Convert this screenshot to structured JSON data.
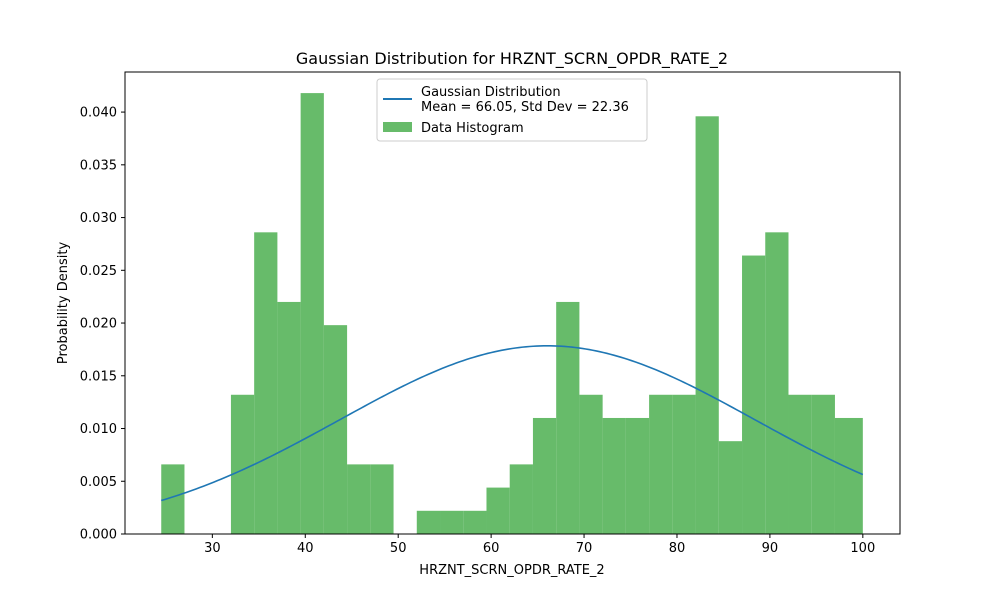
{
  "chart_data": {
    "type": "bar",
    "title": "Gaussian Distribution for HRZNT_SCRN_OPDR_RATE_2",
    "xlabel": "HRZNT_SCRN_OPDR_RATE_2",
    "ylabel": "Probability Density",
    "xlim": [
      20.6,
      104.0
    ],
    "ylim": [
      0,
      0.0438
    ],
    "xticks": [
      30,
      40,
      50,
      60,
      70,
      80,
      90,
      100
    ],
    "yticks": [
      "0.000",
      "0.005",
      "0.010",
      "0.015",
      "0.020",
      "0.025",
      "0.030",
      "0.035",
      "0.040"
    ],
    "grid": false,
    "legend_position": "upper center",
    "series": [
      {
        "name": "Gaussian Distribution\nMean = 66.05, Std Dev = 22.36",
        "kind": "line",
        "color": "#1f77b4",
        "mean": 66.05,
        "std": 22.36,
        "x_range": [
          24.5,
          100.0
        ]
      },
      {
        "name": "Data Histogram",
        "kind": "histogram",
        "color": "#4caf50",
        "bin_edges": [
          24.5,
          27.0,
          29.5,
          32.0,
          34.5,
          37.0,
          39.5,
          42.0,
          44.5,
          47.0,
          49.5,
          52.0,
          54.5,
          57.0,
          59.5,
          62.0,
          64.5,
          67.0,
          69.5,
          72.0,
          74.5,
          77.0,
          79.5,
          82.0,
          84.5,
          87.0,
          89.5,
          92.0,
          94.5,
          97.0,
          100.0
        ],
        "values": [
          0.0066,
          0.0,
          0.0,
          0.0132,
          0.0286,
          0.022,
          0.0418,
          0.0198,
          0.0066,
          0.0066,
          0.0,
          0.0022,
          0.0022,
          0.0022,
          0.0044,
          0.0066,
          0.011,
          0.022,
          0.0132,
          0.011,
          0.011,
          0.0132,
          0.0132,
          0.0396,
          0.0088,
          0.0264,
          0.0286,
          0.0132,
          0.0132,
          0.011
        ]
      }
    ]
  }
}
